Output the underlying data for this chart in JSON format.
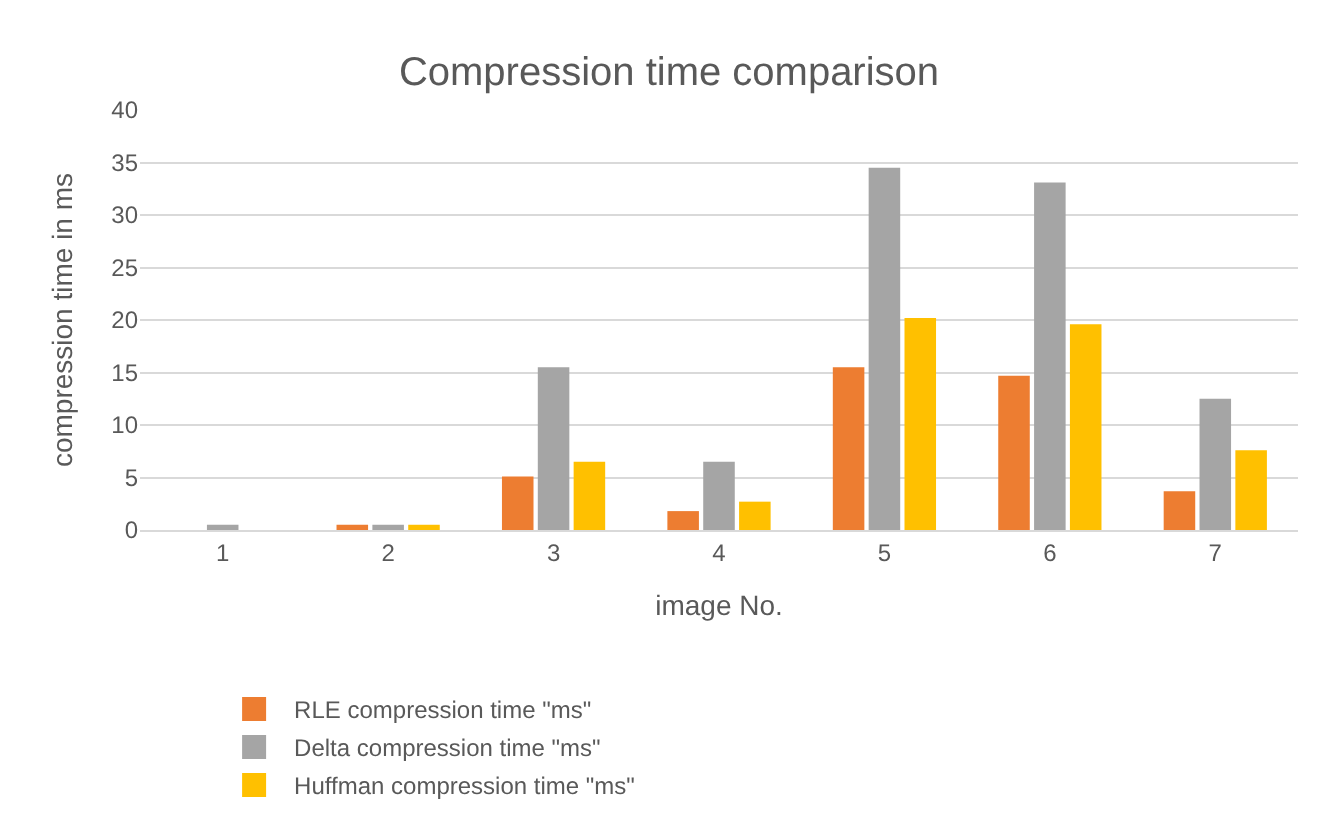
{
  "chart_data": {
    "type": "bar",
    "title": "Compression time comparison",
    "xlabel": "image No.",
    "ylabel": "compression time in ms",
    "categories": [
      "1",
      "2",
      "3",
      "4",
      "5",
      "6",
      "7"
    ],
    "series": [
      {
        "name": "RLE compression time \"ms\"",
        "color": "#ed7d31",
        "values": [
          0,
          0.5,
          5.1,
          1.8,
          15.5,
          14.7,
          3.7
        ]
      },
      {
        "name": "Delta compression time \"ms\"",
        "color": "#a5a5a5",
        "values": [
          0.5,
          0.5,
          15.5,
          6.5,
          34.5,
          33.1,
          12.5
        ]
      },
      {
        "name": "Huffman compression time \"ms\"",
        "color": "#ffc000",
        "values": [
          0,
          0.5,
          6.5,
          2.7,
          20.2,
          19.6,
          7.6
        ]
      }
    ],
    "ylim": [
      0,
      40
    ],
    "yticks": [
      0,
      5,
      10,
      15,
      20,
      25,
      30,
      35,
      40
    ],
    "grid": "y",
    "legend": "bottom"
  }
}
